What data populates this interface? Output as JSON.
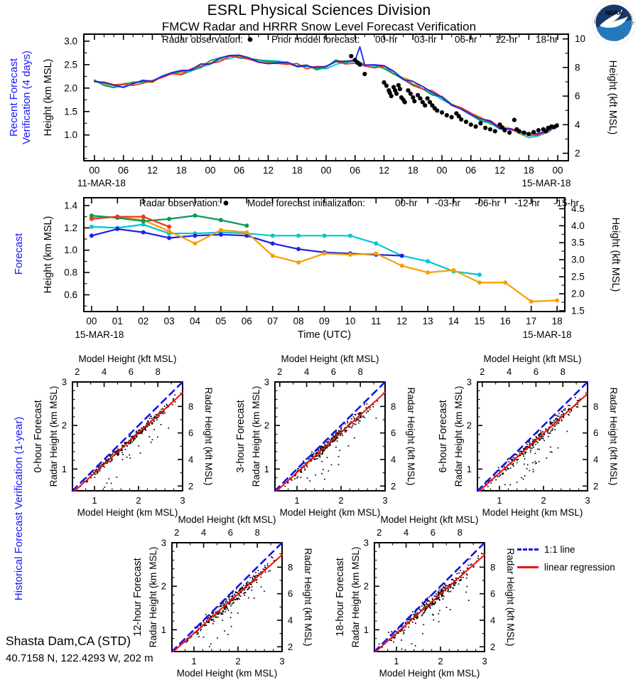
{
  "header": {
    "title": "ESRL Physical Sciences Division",
    "subtitle": "FMCW Radar and HRRR Snow Level Forecast Verification",
    "logo": "NOAA",
    "logo_ring_top": "NATIONAL OCEANIC AND ATMOSPHERIC ADMINISTRATION",
    "logo_ring_bottom": "U.S. DEPARTMENT OF COMMERCE"
  },
  "station": {
    "name": "Shasta Dam,CA (STD)",
    "coords": "40.7158 N, 122.4293 W, 202 m"
  },
  "palette": {
    "orange": "#f5a000",
    "cyan": "#00c7ce",
    "blue": "#2020e8",
    "green": "#009b55",
    "red": "#f53126",
    "black": "#000000",
    "labelBlue": "#1515ff",
    "oneToOneBlue": "#1414ee",
    "regressionRed": "#f50f0f"
  },
  "chart_data": [
    {
      "id": "recent",
      "type": "line",
      "side_label": [
        "Recent Forecast",
        "Verification (4 days)"
      ],
      "legend": {
        "obs_label": "Radar observation:",
        "model_label": "Prior model forecast:",
        "items": [
          {
            "label": "00-hr",
            "color": "orange"
          },
          {
            "label": "03-hr",
            "color": "cyan"
          },
          {
            "label": "06-hr",
            "color": "blue"
          },
          {
            "label": "12-hr",
            "color": "green"
          },
          {
            "label": "18-hr",
            "color": "red"
          }
        ]
      },
      "ylabel_left": "Height (km MSL)",
      "ylabel_right": "Height (kft MSL)",
      "xlim": [
        -2.2,
        98.2
      ],
      "ylim": [
        0.45,
        3.15
      ],
      "x_start": 0,
      "x_end": 96,
      "xtick_step": 6,
      "xminor_step": 2,
      "xtick_labels": [
        "00",
        "06",
        "12",
        "18",
        "00",
        "06",
        "12",
        "18",
        "00",
        "06",
        "12",
        "18",
        "00",
        "06",
        "12",
        "18",
        "00"
      ],
      "date_left": "11-MAR-18",
      "date_right": "15-MAR-18",
      "yticks": [
        1.0,
        1.5,
        2.0,
        2.5,
        3.0
      ],
      "ytick_labels": [
        "1.0",
        "1.5",
        "2.0",
        "2.5",
        "3.0"
      ],
      "yminor_step": 0.25,
      "right_ticks_kft": [
        2,
        4,
        6,
        8,
        10
      ],
      "right_tick_labels": [
        "2",
        "4",
        "6",
        "8",
        "10"
      ],
      "right_minor_kft": [
        3,
        5,
        7,
        9
      ],
      "trend": [
        [
          0,
          2.14
        ],
        [
          2,
          2.09
        ],
        [
          4,
          2.05
        ],
        [
          6,
          2.06
        ],
        [
          8,
          2.1
        ],
        [
          10,
          2.13
        ],
        [
          12,
          2.16
        ],
        [
          14,
          2.24
        ],
        [
          16,
          2.3
        ],
        [
          18,
          2.33
        ],
        [
          20,
          2.4
        ],
        [
          22,
          2.48
        ],
        [
          24,
          2.54
        ],
        [
          26,
          2.61
        ],
        [
          28,
          2.66
        ],
        [
          30,
          2.69
        ],
        [
          32,
          2.64
        ],
        [
          34,
          2.59
        ],
        [
          36,
          2.56
        ],
        [
          38,
          2.56
        ],
        [
          40,
          2.52
        ],
        [
          42,
          2.49
        ],
        [
          44,
          2.45
        ],
        [
          46,
          2.43
        ],
        [
          48,
          2.46
        ],
        [
          50,
          2.55
        ],
        [
          51,
          2.63
        ],
        [
          52,
          2.54
        ],
        [
          53,
          2.61
        ],
        [
          54,
          2.57
        ],
        [
          55,
          2.63
        ],
        [
          56,
          2.5
        ],
        [
          57,
          2.54
        ],
        [
          58,
          2.48
        ],
        [
          60,
          2.44
        ],
        [
          62,
          2.34
        ],
        [
          64,
          2.2
        ],
        [
          66,
          2.1
        ],
        [
          68,
          2.0
        ],
        [
          70,
          1.9
        ],
        [
          72,
          1.79
        ],
        [
          74,
          1.67
        ],
        [
          76,
          1.56
        ],
        [
          78,
          1.46
        ],
        [
          80,
          1.35
        ],
        [
          82,
          1.26
        ],
        [
          84,
          1.17
        ],
        [
          86,
          1.1
        ],
        [
          88,
          1.04
        ],
        [
          90,
          0.99
        ],
        [
          92,
          1.02
        ],
        [
          93,
          0.98
        ],
        [
          94,
          1.06
        ],
        [
          95,
          1.12
        ],
        [
          96,
          1.22
        ]
      ],
      "series": [
        {
          "label": "00-hr",
          "color": "orange",
          "seed": 11
        },
        {
          "label": "03-hr",
          "color": "cyan",
          "seed": 22
        },
        {
          "label": "12-hr",
          "color": "green",
          "seed": 44
        },
        {
          "label": "18-hr",
          "color": "red",
          "seed": 55
        },
        {
          "label": "06-hr",
          "color": "blue",
          "seed": 33,
          "spike": [
            55,
            2.88
          ]
        }
      ],
      "radar_obs": [
        [
          53.2,
          2.68
        ],
        [
          54,
          2.6
        ],
        [
          54.5,
          2.54
        ],
        [
          55,
          2.5
        ],
        [
          56,
          2.3
        ],
        [
          60,
          2.12
        ],
        [
          60.5,
          2.05
        ],
        [
          61,
          1.95
        ],
        [
          61.2,
          1.9
        ],
        [
          61.5,
          1.83
        ],
        [
          62,
          2.02
        ],
        [
          62.3,
          1.95
        ],
        [
          62.6,
          1.88
        ],
        [
          63,
          2.06
        ],
        [
          63.3,
          1.98
        ],
        [
          63.6,
          1.8
        ],
        [
          64,
          1.75
        ],
        [
          64.3,
          1.7
        ],
        [
          65,
          1.95
        ],
        [
          65.5,
          1.88
        ],
        [
          66,
          1.8
        ],
        [
          66.3,
          1.72
        ],
        [
          67,
          1.85
        ],
        [
          67.5,
          1.78
        ],
        [
          68,
          1.7
        ],
        [
          68.5,
          1.63
        ],
        [
          69,
          1.78
        ],
        [
          69.5,
          1.7
        ],
        [
          70,
          1.63
        ],
        [
          70.5,
          1.57
        ],
        [
          71,
          1.52
        ],
        [
          72,
          1.48
        ],
        [
          73,
          1.42
        ],
        [
          74,
          1.38
        ],
        [
          75,
          1.46
        ],
        [
          75.5,
          1.4
        ],
        [
          76,
          1.33
        ],
        [
          77,
          1.28
        ],
        [
          78,
          1.22
        ],
        [
          79,
          1.18
        ],
        [
          80,
          1.25
        ],
        [
          81,
          1.15
        ],
        [
          82,
          1.12
        ],
        [
          83,
          1.08
        ],
        [
          84,
          1.22
        ],
        [
          84.5,
          1.16
        ],
        [
          85,
          1.1
        ],
        [
          86,
          1.05
        ],
        [
          87,
          1.32
        ],
        [
          87.5,
          1.12
        ],
        [
          88,
          1.08
        ],
        [
          89,
          1.05
        ],
        [
          90,
          1.02
        ],
        [
          91,
          1.06
        ],
        [
          92,
          1.1
        ],
        [
          93,
          1.12
        ],
        [
          93.5,
          1.08
        ],
        [
          94,
          1.15
        ],
        [
          94.7,
          1.18
        ],
        [
          95.3,
          1.17
        ],
        [
          95.8,
          1.2
        ]
      ]
    },
    {
      "id": "forecast",
      "type": "line",
      "side_label": [
        "Forecast"
      ],
      "legend": {
        "obs_label": "Radar observation:",
        "model_label": "Model forecast initialization:",
        "items": [
          {
            "label": "00-hr",
            "color": "orange"
          },
          {
            "label": "-03-hr",
            "color": "cyan"
          },
          {
            "label": "-06-hr",
            "color": "blue"
          },
          {
            "label": "-12-hr",
            "color": "green"
          },
          {
            "label": "-15-hr",
            "color": "red"
          }
        ]
      },
      "xlabel": "Time (UTC)",
      "ylabel_left": "Height (km MSL)",
      "ylabel_right": "Height (kft MSL)",
      "xlim": [
        -0.3,
        18.3
      ],
      "ylim": [
        0.45,
        1.47
      ],
      "x_start": 0,
      "x_end": 18,
      "xtick_step": 1,
      "xtick_labels": [
        "00",
        "01",
        "02",
        "03",
        "04",
        "05",
        "06",
        "07",
        "08",
        "09",
        "10",
        "11",
        "12",
        "13",
        "14",
        "15",
        "16",
        "17",
        "18"
      ],
      "date_left": "15-MAR-18",
      "date_right": "15-MAR-18",
      "yticks": [
        0.6,
        0.8,
        1.0,
        1.2,
        1.4
      ],
      "ytick_labels": [
        "0.6",
        "0.8",
        "1.0",
        "1.2",
        "1.4"
      ],
      "yminor_step": 0.1,
      "right_ticks_kft": [
        1.5,
        2.0,
        2.5,
        3.0,
        3.5,
        4.0,
        4.5
      ],
      "right_tick_labels": [
        "1.5",
        "2.0",
        "2.5",
        "3.0",
        "3.5",
        "4.0",
        "4.5"
      ],
      "right_minor_kft": [
        1.75,
        2.25,
        2.75,
        3.25,
        3.75,
        4.25
      ],
      "series": [
        {
          "label": "-03-hr",
          "color": "cyan",
          "points": [
            [
              0,
              1.21
            ],
            [
              1,
              1.2
            ],
            [
              2,
              1.23
            ],
            [
              3,
              1.15
            ],
            [
              4,
              1.15
            ],
            [
              5,
              1.16
            ],
            [
              6,
              1.15
            ],
            [
              7,
              1.13
            ],
            [
              8,
              1.13
            ],
            [
              9,
              1.13
            ],
            [
              10,
              1.13
            ],
            [
              11,
              1.06
            ],
            [
              12,
              0.95
            ],
            [
              13,
              0.9
            ],
            [
              14,
              0.81
            ],
            [
              15,
              0.78
            ]
          ]
        },
        {
          "label": "-06-hr",
          "color": "blue",
          "points": [
            [
              0,
              1.13
            ],
            [
              1,
              1.19
            ],
            [
              2,
              1.16
            ],
            [
              3,
              1.11
            ],
            [
              4,
              1.13
            ],
            [
              5,
              1.14
            ],
            [
              6,
              1.13
            ],
            [
              7,
              1.06
            ],
            [
              8,
              1.01
            ],
            [
              9,
              0.98
            ],
            [
              10,
              0.97
            ],
            [
              11,
              0.96
            ],
            [
              12,
              0.95
            ]
          ]
        },
        {
          "label": "00-hr",
          "color": "orange",
          "points": [
            [
              0,
              1.29
            ],
            [
              1,
              1.3
            ],
            [
              2,
              1.27
            ],
            [
              3,
              1.17
            ],
            [
              4,
              1.06
            ],
            [
              5,
              1.18
            ],
            [
              6,
              1.16
            ],
            [
              7,
              0.95
            ],
            [
              8,
              0.89
            ],
            [
              9,
              0.97
            ],
            [
              10,
              0.96
            ],
            [
              11,
              0.97
            ],
            [
              12,
              0.86
            ],
            [
              13,
              0.8
            ],
            [
              14,
              0.82
            ],
            [
              15,
              0.71
            ],
            [
              16,
              0.71
            ],
            [
              17,
              0.54
            ],
            [
              18,
              0.55
            ]
          ]
        },
        {
          "label": "-12-hr",
          "color": "green",
          "points": [
            [
              0,
              1.31
            ],
            [
              1,
              1.29
            ],
            [
              2,
              1.26
            ],
            [
              3,
              1.28
            ],
            [
              4,
              1.31
            ],
            [
              5,
              1.27
            ],
            [
              6,
              1.22
            ]
          ]
        },
        {
          "label": "-15-hr",
          "color": "red",
          "points": [
            [
              0,
              1.28
            ],
            [
              1,
              1.3
            ],
            [
              2,
              1.3
            ],
            [
              3,
              1.21
            ]
          ]
        }
      ],
      "radar_obs": []
    },
    {
      "id": "historical",
      "type": "scatter",
      "side_label": [
        "Historical Forecast Verification (1-year)"
      ],
      "xlabel_top": "Model Height (kft MSL)",
      "xlabel_bottom": "Model Height (km MSL)",
      "ylabel_left": "Radar Height (km MSL)",
      "ylabel_right": "Radar Height (kft MSL)",
      "lim": [
        0.5,
        3.0
      ],
      "ticks_km": [
        1,
        2,
        3
      ],
      "tick_labels_km": [
        "1",
        "2",
        "3"
      ],
      "ticks_kft": [
        2,
        4,
        6,
        8
      ],
      "tick_labels_kft": [
        "2",
        "4",
        "6",
        "8"
      ],
      "minor_kft": [
        3,
        5,
        7,
        9
      ],
      "legend": [
        {
          "label": "1:1 line",
          "color": "oneToOneBlue",
          "dashed": true
        },
        {
          "label": "linear regression",
          "color": "regressionRed",
          "dashed": false
        }
      ],
      "panels": [
        {
          "label": "0-hour Forecast",
          "n": 310,
          "seed": 101,
          "slope": 0.92,
          "intercept": -0.01,
          "noise": 0.13
        },
        {
          "label": "3-hour Forecast",
          "n": 310,
          "seed": 202,
          "slope": 0.92,
          "intercept": 0.0,
          "noise": 0.15
        },
        {
          "label": "6-hour Forecast",
          "n": 310,
          "seed": 303,
          "slope": 0.91,
          "intercept": 0.0,
          "noise": 0.17
        },
        {
          "label": "12-hour Forecast",
          "n": 310,
          "seed": 404,
          "slope": 0.9,
          "intercept": 0.02,
          "noise": 0.18
        },
        {
          "label": "18-hour Forecast",
          "n": 310,
          "seed": 505,
          "slope": 0.9,
          "intercept": 0.02,
          "noise": 0.19
        }
      ]
    }
  ]
}
